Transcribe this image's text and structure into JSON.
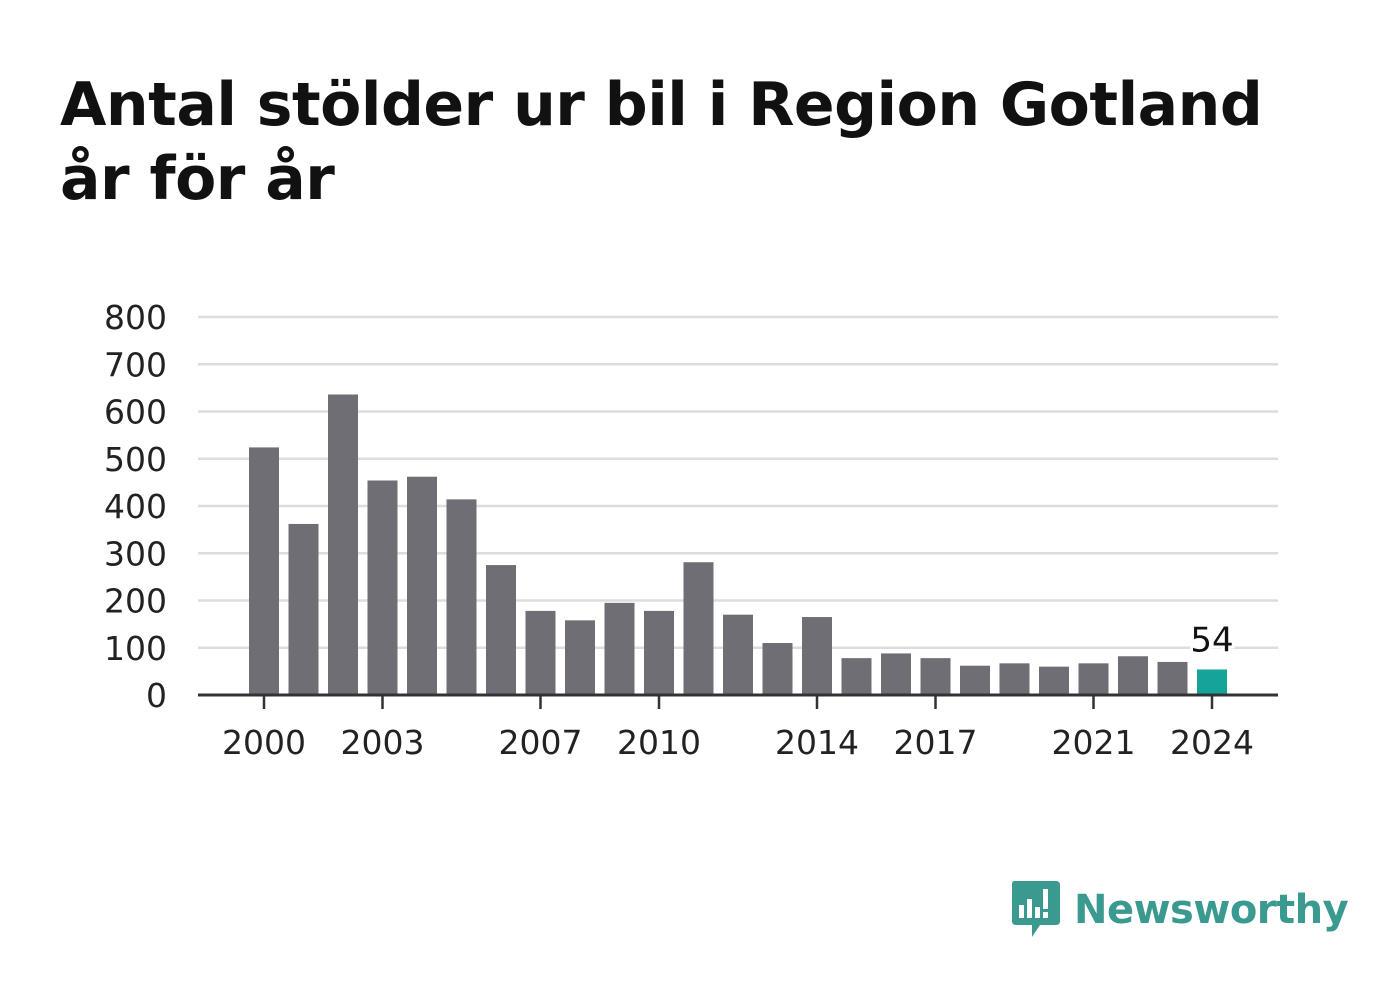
{
  "title": "Antal stölder ur bil i Region Gotland år för år",
  "brand": {
    "name": "Newsworthy",
    "icon": "newsworthy-logo-icon",
    "color": "#3a9a8f"
  },
  "colors": {
    "bar": "#6f6e75",
    "highlight": "#16a39a",
    "grid": "#dddddd",
    "axis": "#333333",
    "text": "#222222"
  },
  "chart_data": {
    "type": "bar",
    "title": "Antal stölder ur bil i Region Gotland år för år",
    "xlabel": "",
    "ylabel": "",
    "ylim": [
      0,
      800
    ],
    "yticks": [
      0,
      100,
      200,
      300,
      400,
      500,
      600,
      700,
      800
    ],
    "grid": true,
    "categories": [
      "2000",
      "2001",
      "2002",
      "2003",
      "2004",
      "2005",
      "2006",
      "2007",
      "2008",
      "2009",
      "2010",
      "2011",
      "2012",
      "2013",
      "2014",
      "2015",
      "2016",
      "2017",
      "2018",
      "2019",
      "2020",
      "2021",
      "2022",
      "2023",
      "2024"
    ],
    "xtick_labels": [
      "2000",
      "2003",
      "2007",
      "2010",
      "2014",
      "2017",
      "2021",
      "2024"
    ],
    "values": [
      524,
      362,
      636,
      454,
      462,
      414,
      275,
      178,
      158,
      195,
      178,
      281,
      170,
      110,
      165,
      78,
      88,
      78,
      62,
      67,
      60,
      67,
      82,
      70,
      54
    ],
    "highlight": {
      "category": "2024",
      "label": "54"
    }
  }
}
